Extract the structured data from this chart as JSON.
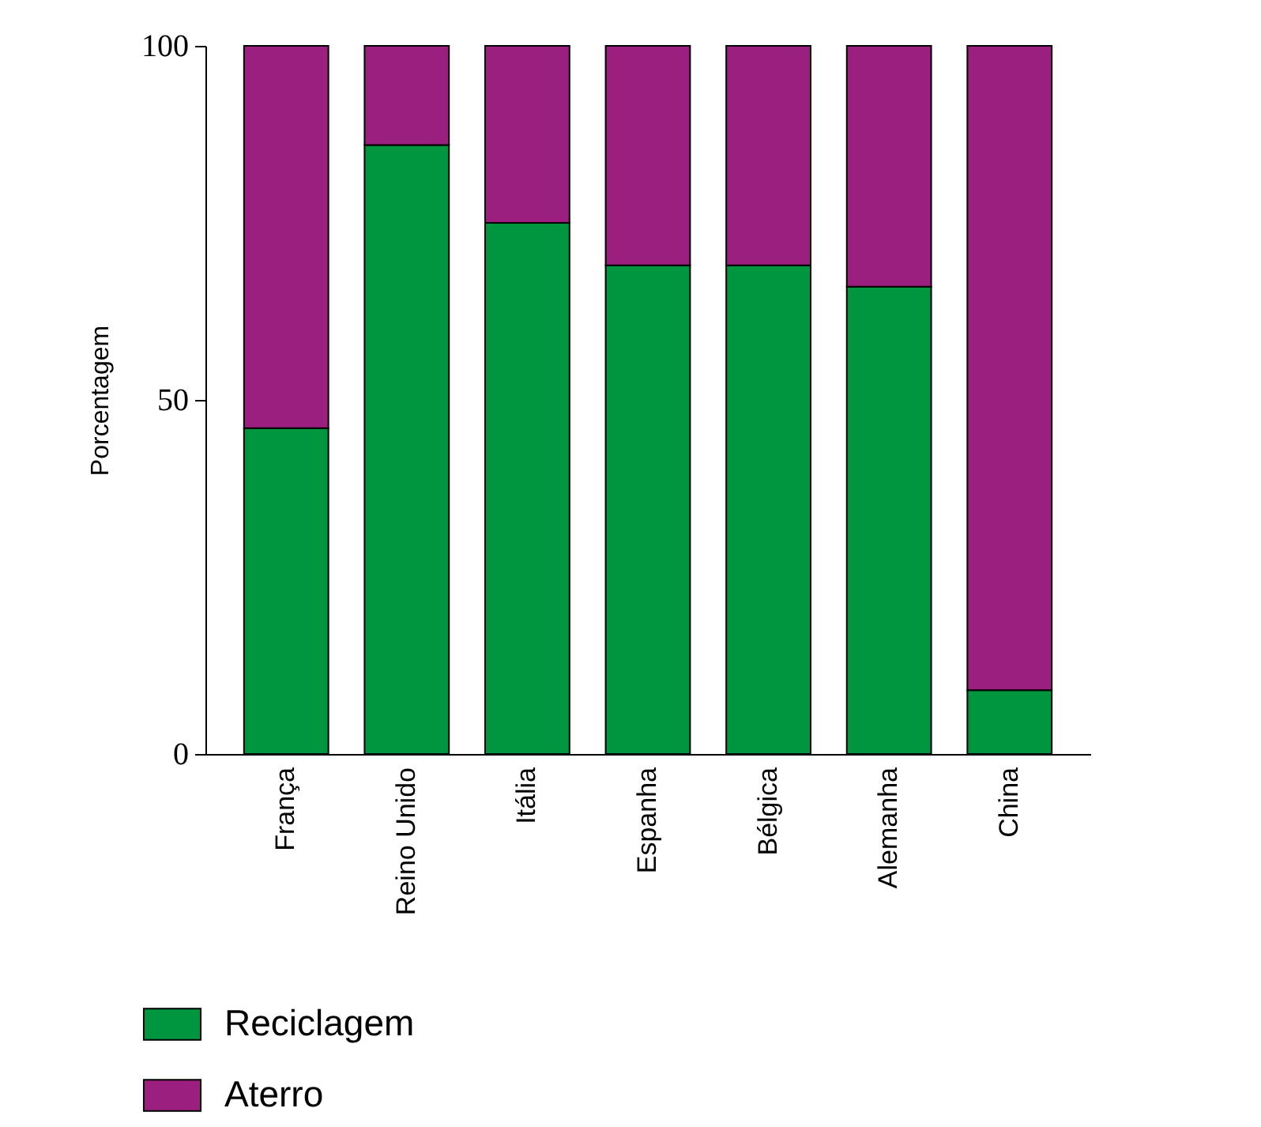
{
  "chart_data": {
    "type": "bar",
    "stacked": true,
    "ylabel": "Porcentagem",
    "categories": [
      "França",
      "Reino Unido",
      "Itália",
      "Espanha",
      "Bélgica",
      "Alemanha",
      "China"
    ],
    "series": [
      {
        "name": "Reciclagem",
        "color": "#009640",
        "values": [
          46,
          86,
          75,
          69,
          69,
          66,
          9
        ]
      },
      {
        "name": "Aterro",
        "color": "#9b1f7e",
        "values": [
          54,
          14,
          25,
          31,
          31,
          34,
          91
        ]
      }
    ],
    "ylim": [
      0,
      100
    ],
    "yticks": [
      0,
      50,
      100
    ],
    "legend": "bottom left",
    "grid": false
  }
}
